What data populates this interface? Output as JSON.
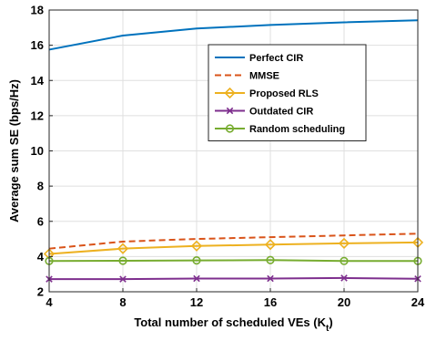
{
  "chart_data": {
    "type": "line",
    "title": "",
    "xlabel": "Total number of scheduled VEs (K",
    "xlabel_sub": "t",
    "xlabel_suffix": ")",
    "ylabel": "Average sum SE (bps/Hz)",
    "x": [
      4,
      8,
      12,
      16,
      20,
      24
    ],
    "xlim": [
      4,
      24
    ],
    "ylim": [
      2,
      18
    ],
    "xticks": [
      "4",
      "8",
      "12",
      "16",
      "20",
      "24"
    ],
    "yticks": [
      "2",
      "4",
      "6",
      "8",
      "10",
      "12",
      "14",
      "16",
      "18"
    ],
    "grid": true,
    "legend_position": "upper-right-inside",
    "series": [
      {
        "name": "Perfect CIR",
        "values": [
          15.75,
          16.55,
          16.95,
          17.15,
          17.3,
          17.42
        ],
        "color": "#0072BD",
        "dash": "solid",
        "marker": "none"
      },
      {
        "name": "MMSE",
        "values": [
          4.45,
          4.85,
          5.0,
          5.1,
          5.2,
          5.3
        ],
        "color": "#D95319",
        "dash": "dashed",
        "marker": "none"
      },
      {
        "name": "Proposed RLS",
        "values": [
          4.15,
          4.45,
          4.6,
          4.68,
          4.75,
          4.8
        ],
        "color": "#EDB120",
        "dash": "solid",
        "marker": "diamond"
      },
      {
        "name": "Outdated CIR",
        "values": [
          2.72,
          2.72,
          2.75,
          2.75,
          2.78,
          2.74
        ],
        "color": "#7E2F8E",
        "dash": "solid",
        "marker": "x"
      },
      {
        "name": "Random scheduling",
        "values": [
          3.75,
          3.76,
          3.78,
          3.8,
          3.75,
          3.75
        ],
        "color": "#77AC30",
        "dash": "solid",
        "marker": "circle"
      }
    ]
  }
}
